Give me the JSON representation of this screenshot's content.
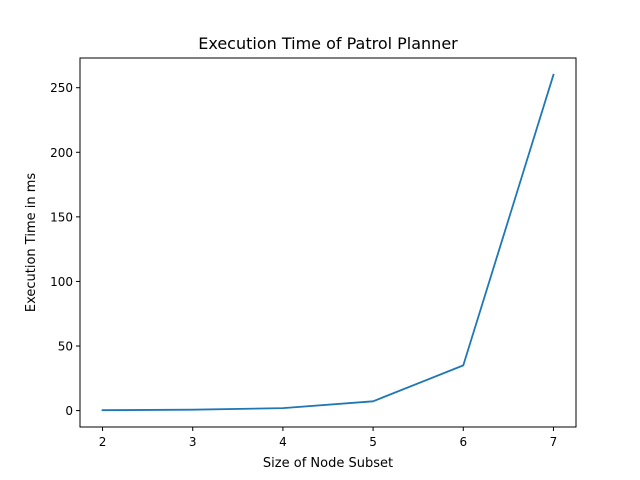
{
  "chart_data": {
    "type": "line",
    "title": "Execution Time of Patrol Planner",
    "xlabel": "Size of Node Subset",
    "ylabel": "Execution Time in ms",
    "x": [
      2,
      3,
      4,
      5,
      6,
      7
    ],
    "series": [
      {
        "values": [
          0.3,
          0.7,
          1.9,
          7.2,
          35,
          260
        ],
        "color": "#1f77b4"
      }
    ],
    "xticks": [
      2,
      3,
      4,
      5,
      6,
      7
    ],
    "yticks": [
      0,
      50,
      100,
      150,
      200,
      250
    ],
    "xlim": [
      1.75,
      7.25
    ],
    "ylim": [
      -12.7,
      273.0
    ],
    "grid": false,
    "legend": "none"
  }
}
